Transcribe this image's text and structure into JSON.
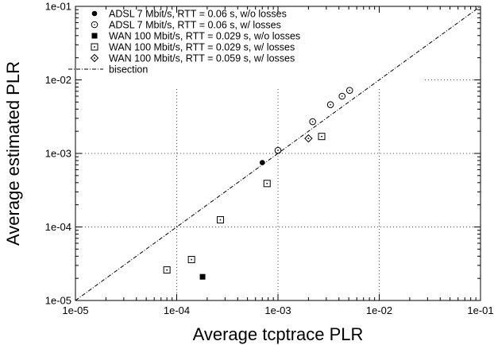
{
  "chart_data": {
    "type": "scatter",
    "x_scale": "log",
    "y_scale": "log",
    "xlabel": "Average tcptrace PLR",
    "ylabel": "Average estimated PLR",
    "xlim": [
      1e-05,
      0.1
    ],
    "ylim": [
      1e-05,
      0.1
    ],
    "x_ticks": [
      "1e-05",
      "1e-04",
      "1e-03",
      "1e-02",
      "1e-01"
    ],
    "y_ticks": [
      "1e-05",
      "1e-04",
      "1e-03",
      "1e-02",
      "1e-01"
    ],
    "grid": true,
    "legend_position": "top-left",
    "series": [
      {
        "name": "ADSL 7 Mbit/s, RTT = 0.06 s, w/o losses",
        "marker": "filled-circle",
        "points": [
          [
            0.0007,
            0.00075
          ]
        ]
      },
      {
        "name": "ADSL 7 Mbit/s, RTT = 0.06 s, w/ losses",
        "marker": "open-circle",
        "points": [
          [
            0.001,
            0.0011
          ],
          [
            0.0022,
            0.0027
          ],
          [
            0.0033,
            0.0046
          ],
          [
            0.0043,
            0.006
          ],
          [
            0.0051,
            0.0072
          ]
        ]
      },
      {
        "name": "WAN 100 Mbit/s, RTT = 0.029 s, w/o losses",
        "marker": "filled-square",
        "points": [
          [
            0.00018,
            2.1e-05
          ]
        ]
      },
      {
        "name": "WAN 100 Mbit/s, RTT = 0.029 s, w/ losses",
        "marker": "dotted-square",
        "points": [
          [
            8e-05,
            2.6e-05
          ],
          [
            0.00014,
            3.6e-05
          ],
          [
            0.00027,
            0.000125
          ],
          [
            0.00078,
            0.00039
          ],
          [
            0.0027,
            0.0017
          ]
        ]
      },
      {
        "name": "WAN 100 Mbit/s, RTT = 0.059 s, w/ losses",
        "marker": "dotted-diamond",
        "points": [
          [
            0.002,
            0.0016
          ]
        ]
      },
      {
        "name": "bisection",
        "marker": "dash-dot-line",
        "points": [
          [
            1e-05,
            1e-05
          ],
          [
            0.1,
            0.1
          ]
        ]
      }
    ]
  }
}
